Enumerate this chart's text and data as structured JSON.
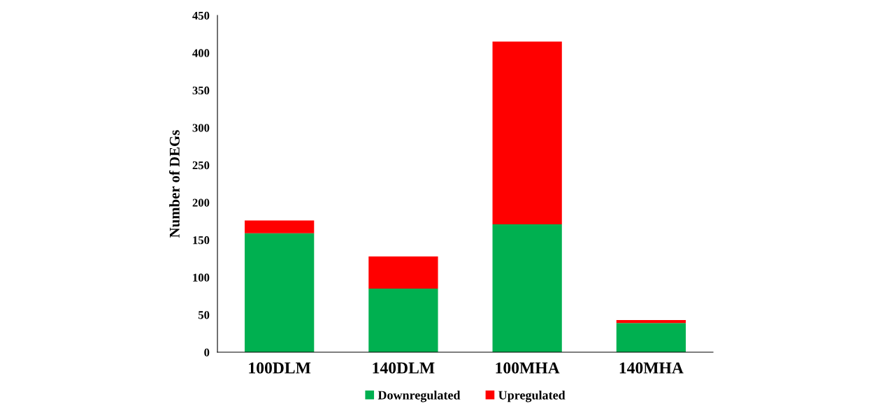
{
  "chart_data": {
    "type": "bar",
    "stacked": true,
    "ylabel": "Number of DEGs",
    "categories": [
      "100DLM",
      "140DLM",
      "100MHA",
      "140MHA"
    ],
    "series": [
      {
        "name": "Downregulated",
        "color": "#00b050",
        "values": [
          159,
          85,
          171,
          39
        ]
      },
      {
        "name": "Upregulated",
        "color": "#ff0000",
        "values": [
          17,
          43,
          244,
          4
        ]
      }
    ],
    "ylim": [
      0,
      450
    ],
    "yticks": [
      0,
      50,
      100,
      150,
      200,
      250,
      300,
      350,
      400,
      450
    ],
    "grid": false,
    "legend": "bottom"
  }
}
